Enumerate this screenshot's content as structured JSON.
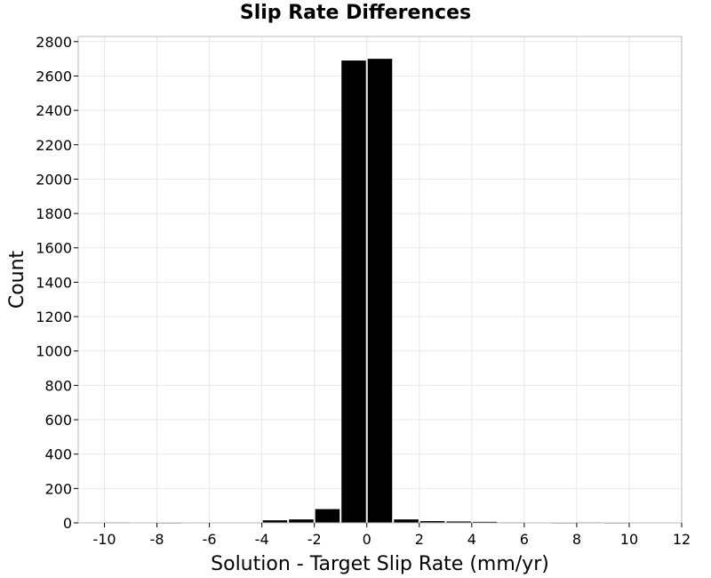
{
  "chart_data": {
    "type": "bar",
    "title": "Slip Rate Differences",
    "xlabel": "Solution - Target Slip Rate (mm/yr)",
    "ylabel": "Count",
    "xlim": [
      -11,
      12
    ],
    "ylim": [
      0,
      2830
    ],
    "xticks": [
      -10,
      -8,
      -6,
      -4,
      -2,
      0,
      2,
      4,
      6,
      8,
      10,
      12
    ],
    "yticks": [
      0,
      200,
      400,
      600,
      800,
      1000,
      1200,
      1400,
      1600,
      1800,
      2000,
      2200,
      2400,
      2600,
      2800
    ],
    "grid": true,
    "bin_width": 1,
    "bars": [
      {
        "x": -10,
        "value": 3
      },
      {
        "x": -8,
        "value": 2
      },
      {
        "x": -4,
        "value": 15
      },
      {
        "x": -3,
        "value": 20
      },
      {
        "x": -2,
        "value": 80
      },
      {
        "x": -1,
        "value": 2690
      },
      {
        "x": 0,
        "value": 2700
      },
      {
        "x": 1,
        "value": 20
      },
      {
        "x": 2,
        "value": 10
      },
      {
        "x": 3,
        "value": 8
      },
      {
        "x": 4,
        "value": 6
      },
      {
        "x": 5,
        "value": 3
      },
      {
        "x": 7,
        "value": 2
      },
      {
        "x": 8,
        "value": 3
      },
      {
        "x": 9,
        "value": 2
      }
    ],
    "colors": {
      "bar": "#000000",
      "grid": "#e8e8e8",
      "frame": "#bbbbbb"
    }
  }
}
